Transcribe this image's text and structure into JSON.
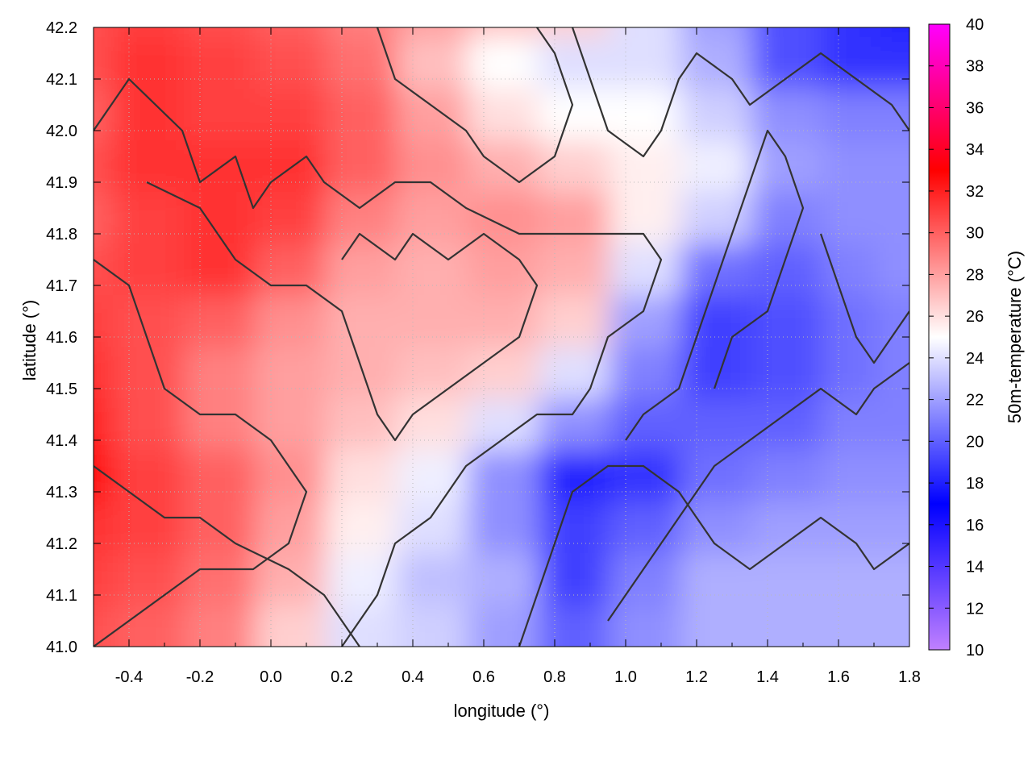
{
  "chart_data": {
    "type": "heatmap",
    "title": "",
    "xlabel": "longitude (°)",
    "ylabel": "latitude (°)",
    "colorbar_label": "50m-temperature (°C)",
    "xlim": [
      -0.5,
      1.8
    ],
    "ylim": [
      41.0,
      42.2
    ],
    "clim": [
      10,
      40
    ],
    "x_ticks": [
      "-0.4",
      "-0.2",
      "0.0",
      "0.2",
      "0.4",
      "0.6",
      "0.8",
      "1.0",
      "1.2",
      "1.4",
      "1.6",
      "1.8"
    ],
    "y_ticks": [
      "41.0",
      "41.1",
      "41.2",
      "41.3",
      "41.4",
      "41.5",
      "41.6",
      "41.7",
      "41.8",
      "41.9",
      "42.0",
      "42.1",
      "42.2"
    ],
    "colorbar_ticks": [
      "10",
      "12",
      "14",
      "16",
      "18",
      "20",
      "22",
      "24",
      "26",
      "28",
      "30",
      "32",
      "34",
      "36",
      "38",
      "40"
    ],
    "grid": true,
    "colormap": [
      {
        "value": 10,
        "color": "#c080ff"
      },
      {
        "value": 17,
        "color": "#0000ff"
      },
      {
        "value": 25,
        "color": "#ffffff"
      },
      {
        "value": 33,
        "color": "#ff0000"
      },
      {
        "value": 40,
        "color": "#ff00ff"
      }
    ],
    "temperature_field": {
      "lon": [
        -0.5,
        -0.3,
        -0.1,
        0.1,
        0.3,
        0.5,
        0.7,
        0.9,
        1.1,
        1.3,
        1.5,
        1.7,
        1.8
      ],
      "lat": [
        42.2,
        42.1,
        42.0,
        41.9,
        41.8,
        41.7,
        41.6,
        41.5,
        41.4,
        41.3,
        41.2,
        41.1,
        41.0
      ],
      "values": [
        [
          30.5,
          31.0,
          30.5,
          30.0,
          29.0,
          28.0,
          27.0,
          26.5,
          24.0,
          22.0,
          19.5,
          18.5,
          18.0
        ],
        [
          30.5,
          31.5,
          31.0,
          30.5,
          29.5,
          27.0,
          25.0,
          24.0,
          24.0,
          22.5,
          19.5,
          18.5,
          18.5
        ],
        [
          30.0,
          31.5,
          31.0,
          31.0,
          30.0,
          28.0,
          26.0,
          25.0,
          25.0,
          23.5,
          21.5,
          21.0,
          21.0
        ],
        [
          30.5,
          31.5,
          31.5,
          31.5,
          30.0,
          28.5,
          27.5,
          26.5,
          25.5,
          24.5,
          22.0,
          21.5,
          21.5
        ],
        [
          30.0,
          31.0,
          31.5,
          31.0,
          29.0,
          28.0,
          28.5,
          28.0,
          25.5,
          23.5,
          21.0,
          21.5,
          21.5
        ],
        [
          30.5,
          31.0,
          31.5,
          30.0,
          28.0,
          27.5,
          28.0,
          27.5,
          24.0,
          20.5,
          20.0,
          21.0,
          21.5
        ],
        [
          31.0,
          30.5,
          30.0,
          28.5,
          27.5,
          27.5,
          27.5,
          26.5,
          22.0,
          19.0,
          19.5,
          20.5,
          21.0
        ],
        [
          31.5,
          30.5,
          29.0,
          28.0,
          27.5,
          27.0,
          26.5,
          24.0,
          21.0,
          19.0,
          19.5,
          20.5,
          21.0
        ],
        [
          32.0,
          30.5,
          29.0,
          28.0,
          27.0,
          26.0,
          24.0,
          21.5,
          20.0,
          20.0,
          20.0,
          21.0,
          21.0
        ],
        [
          32.5,
          31.0,
          30.0,
          28.5,
          26.0,
          24.5,
          21.5,
          18.0,
          18.5,
          20.5,
          21.0,
          21.5,
          21.5
        ],
        [
          31.5,
          31.0,
          30.0,
          28.0,
          25.5,
          24.0,
          21.5,
          19.0,
          20.0,
          21.5,
          22.0,
          22.0,
          22.0
        ],
        [
          31.0,
          30.5,
          29.5,
          27.5,
          24.5,
          23.0,
          22.5,
          19.0,
          21.0,
          22.5,
          22.5,
          22.5,
          22.5
        ],
        [
          30.5,
          30.0,
          29.0,
          26.5,
          24.0,
          23.5,
          22.0,
          20.0,
          21.5,
          22.5,
          22.5,
          22.5,
          22.5
        ]
      ]
    },
    "contours": [
      [
        [
          -0.5,
          42.0
        ],
        [
          -0.4,
          42.1
        ],
        [
          -0.25,
          42.0
        ],
        [
          -0.2,
          41.9
        ],
        [
          -0.1,
          41.95
        ],
        [
          -0.05,
          41.85
        ],
        [
          0.0,
          41.9
        ],
        [
          0.1,
          41.95
        ],
        [
          0.15,
          41.9
        ],
        [
          0.25,
          41.85
        ],
        [
          0.35,
          41.9
        ],
        [
          0.45,
          41.9
        ],
        [
          0.55,
          41.85
        ],
        [
          0.7,
          41.8
        ],
        [
          0.85,
          41.8
        ],
        [
          0.95,
          41.8
        ],
        [
          1.05,
          41.8
        ],
        [
          1.1,
          41.75
        ],
        [
          1.05,
          41.65
        ],
        [
          0.95,
          41.6
        ],
        [
          0.9,
          41.5
        ],
        [
          0.85,
          41.45
        ],
        [
          0.75,
          41.45
        ],
        [
          0.65,
          41.4
        ],
        [
          0.55,
          41.35
        ],
        [
          0.45,
          41.25
        ],
        [
          0.35,
          41.2
        ],
        [
          0.3,
          41.1
        ],
        [
          0.25,
          41.05
        ],
        [
          0.2,
          41.0
        ]
      ],
      [
        [
          -0.5,
          41.75
        ],
        [
          -0.4,
          41.7
        ],
        [
          -0.35,
          41.6
        ],
        [
          -0.3,
          41.5
        ],
        [
          -0.2,
          41.45
        ],
        [
          -0.1,
          41.45
        ],
        [
          0.0,
          41.4
        ],
        [
          0.05,
          41.35
        ],
        [
          0.1,
          41.3
        ],
        [
          0.05,
          41.2
        ],
        [
          -0.05,
          41.15
        ],
        [
          -0.2,
          41.15
        ],
        [
          -0.3,
          41.1
        ],
        [
          -0.4,
          41.05
        ],
        [
          -0.5,
          41.0
        ]
      ],
      [
        [
          -0.35,
          41.9
        ],
        [
          -0.2,
          41.85
        ],
        [
          -0.1,
          41.75
        ],
        [
          0.0,
          41.7
        ],
        [
          0.1,
          41.7
        ],
        [
          0.2,
          41.65
        ],
        [
          0.25,
          41.55
        ],
        [
          0.3,
          41.45
        ],
        [
          0.35,
          41.4
        ],
        [
          0.4,
          41.45
        ],
        [
          0.5,
          41.5
        ],
        [
          0.6,
          41.55
        ],
        [
          0.7,
          41.6
        ],
        [
          0.75,
          41.7
        ],
        [
          0.7,
          41.75
        ],
        [
          0.6,
          41.8
        ],
        [
          0.5,
          41.75
        ],
        [
          0.4,
          41.8
        ],
        [
          0.35,
          41.75
        ],
        [
          0.25,
          41.8
        ],
        [
          0.2,
          41.75
        ]
      ],
      [
        [
          -0.5,
          41.35
        ],
        [
          -0.4,
          41.3
        ],
        [
          -0.3,
          41.25
        ],
        [
          -0.2,
          41.25
        ],
        [
          -0.1,
          41.2
        ],
        [
          0.05,
          41.15
        ],
        [
          0.15,
          41.1
        ],
        [
          0.2,
          41.05
        ],
        [
          0.25,
          41.0
        ]
      ],
      [
        [
          0.7,
          41.0
        ],
        [
          0.75,
          41.1
        ],
        [
          0.8,
          41.2
        ],
        [
          0.85,
          41.3
        ],
        [
          0.95,
          41.35
        ],
        [
          1.05,
          41.35
        ],
        [
          1.15,
          41.3
        ],
        [
          1.25,
          41.2
        ],
        [
          1.35,
          41.15
        ],
        [
          1.45,
          41.2
        ],
        [
          1.55,
          41.25
        ],
        [
          1.65,
          41.2
        ],
        [
          1.7,
          41.15
        ],
        [
          1.8,
          41.2
        ]
      ],
      [
        [
          0.95,
          41.05
        ],
        [
          1.05,
          41.15
        ],
        [
          1.15,
          41.25
        ],
        [
          1.25,
          41.35
        ],
        [
          1.35,
          41.4
        ],
        [
          1.45,
          41.45
        ],
        [
          1.55,
          41.5
        ],
        [
          1.65,
          41.45
        ],
        [
          1.7,
          41.5
        ],
        [
          1.8,
          41.55
        ]
      ],
      [
        [
          1.25,
          41.5
        ],
        [
          1.3,
          41.6
        ],
        [
          1.4,
          41.65
        ],
        [
          1.45,
          41.75
        ],
        [
          1.5,
          41.85
        ],
        [
          1.45,
          41.95
        ],
        [
          1.4,
          42.0
        ],
        [
          1.35,
          41.9
        ],
        [
          1.3,
          41.8
        ],
        [
          1.25,
          41.7
        ],
        [
          1.2,
          41.6
        ],
        [
          1.15,
          41.5
        ],
        [
          1.05,
          41.45
        ],
        [
          1.0,
          41.4
        ]
      ],
      [
        [
          0.85,
          42.2
        ],
        [
          0.9,
          42.1
        ],
        [
          0.95,
          42.0
        ],
        [
          1.05,
          41.95
        ],
        [
          1.1,
          42.0
        ],
        [
          1.15,
          42.1
        ],
        [
          1.2,
          42.15
        ],
        [
          1.3,
          42.1
        ],
        [
          1.35,
          42.05
        ],
        [
          1.45,
          42.1
        ],
        [
          1.55,
          42.15
        ],
        [
          1.65,
          42.1
        ],
        [
          1.75,
          42.05
        ],
        [
          1.8,
          42.0
        ]
      ],
      [
        [
          1.55,
          41.8
        ],
        [
          1.6,
          41.7
        ],
        [
          1.65,
          41.6
        ],
        [
          1.7,
          41.55
        ],
        [
          1.75,
          41.6
        ],
        [
          1.8,
          41.65
        ]
      ],
      [
        [
          0.3,
          42.2
        ],
        [
          0.35,
          42.1
        ],
        [
          0.45,
          42.05
        ],
        [
          0.55,
          42.0
        ],
        [
          0.6,
          41.95
        ],
        [
          0.7,
          41.9
        ],
        [
          0.8,
          41.95
        ],
        [
          0.85,
          42.05
        ],
        [
          0.8,
          42.15
        ],
        [
          0.75,
          42.2
        ]
      ]
    ]
  }
}
